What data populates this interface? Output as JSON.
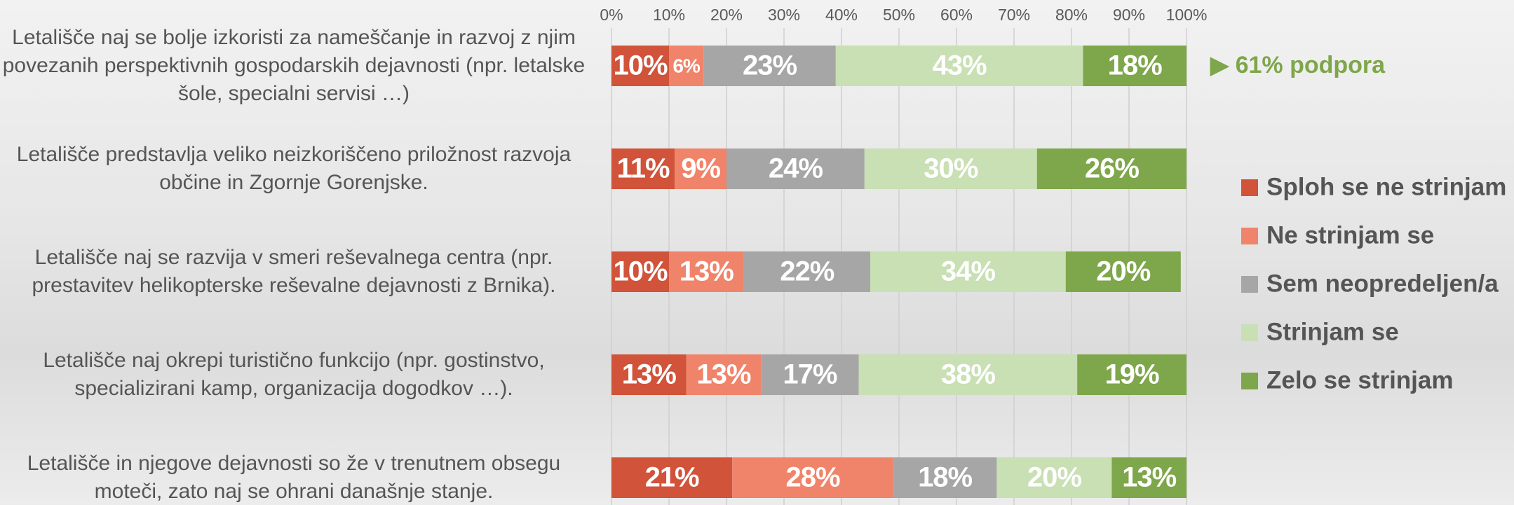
{
  "chart_data": {
    "type": "stacked-bar-horizontal",
    "categories": [
      "Letališče naj se bolje izkoristi za nameščanje in razvoj z njim povezanih perspektivnih gospodarskih dejavnosti (npr. letalske šole, specialni servisi …)",
      "Letališče predstavlja veliko neizkoriščeno priložnost razvoja občine in Zgornje Gorenjske.",
      "Letališče naj se razvija v smeri reševalnega centra (npr. prestavitev helikopterske reševalne dejavnosti z Brnika).",
      "Letališče naj okrepi turistično funkcijo (npr. gostinstvo, specializirani kamp, organizacija dogodkov …).",
      "Letališče in njegove dejavnosti so že v trenutnem obsegu moteči, zato naj se ohrani današnje stanje."
    ],
    "series": [
      {
        "name": "Sploh se ne strinjam",
        "color": "#d0533a",
        "values": [
          10,
          11,
          10,
          13,
          21
        ],
        "value_labels": [
          "10%",
          "11%",
          "10%",
          "13%",
          "21%"
        ]
      },
      {
        "name": "Ne strinjam se",
        "color": "#f0846a",
        "values": [
          6,
          9,
          13,
          13,
          28
        ],
        "value_labels": [
          "6%",
          "9%",
          "13%",
          "13%",
          "28%"
        ]
      },
      {
        "name": "Sem neopredeljen/a",
        "color": "#a6a6a6",
        "values": [
          23,
          24,
          22,
          17,
          18
        ],
        "value_labels": [
          "23%",
          "24%",
          "22%",
          "17%",
          "18%"
        ]
      },
      {
        "name": "Strinjam se",
        "color": "#c9dfb4",
        "values": [
          43,
          30,
          34,
          38,
          20
        ],
        "value_labels": [
          "43%",
          "30%",
          "34%",
          "38%",
          "20%"
        ]
      },
      {
        "name": "Zelo se strinjam",
        "color": "#7ea64a",
        "values": [
          18,
          26,
          20,
          19,
          13
        ],
        "value_labels": [
          "18%",
          "26%",
          "20%",
          "19%",
          "13%"
        ]
      }
    ],
    "xlim": [
      0,
      100
    ],
    "xticks": [
      {
        "value": 0,
        "label": "0%"
      },
      {
        "value": 10,
        "label": "10%"
      },
      {
        "value": 20,
        "label": "20%"
      },
      {
        "value": 30,
        "label": "30%"
      },
      {
        "value": 40,
        "label": "40%"
      },
      {
        "value": 50,
        "label": "50%"
      },
      {
        "value": 60,
        "label": "60%"
      },
      {
        "value": 70,
        "label": "70%"
      },
      {
        "value": 80,
        "label": "80%"
      },
      {
        "value": 90,
        "label": "90%"
      },
      {
        "value": 100,
        "label": "100%"
      }
    ],
    "grid": true,
    "legend_position": "right",
    "annotation": {
      "text": "▶ 61% podpora",
      "color": "#7ea64a"
    }
  }
}
